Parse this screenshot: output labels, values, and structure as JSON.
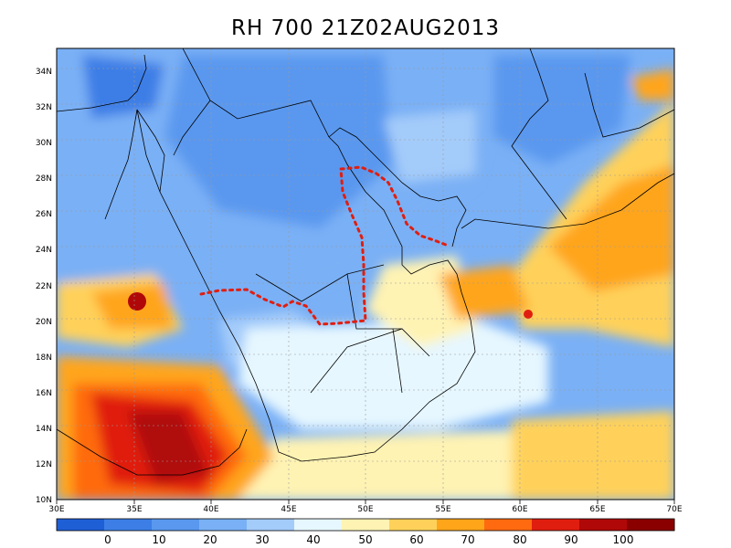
{
  "title": "RH 700 21Z02AUG2013",
  "lon_ticks": [
    "30E",
    "35E",
    "40E",
    "45E",
    "50E",
    "55E",
    "60E",
    "65E",
    "70E"
  ],
  "lat_ticks": [
    "10N",
    "12N",
    "14N",
    "16N",
    "18N",
    "20N",
    "22N",
    "24N",
    "26N",
    "28N",
    "30N",
    "32N",
    "34N"
  ],
  "colorbar": {
    "colors": [
      "#1f5fd6",
      "#3c7ee6",
      "#5a98ef",
      "#7ab0f5",
      "#a4ccfa",
      "#e6f7ff",
      "#fff3b3",
      "#ffd15a",
      "#ffa51a",
      "#ff6a10",
      "#e01e10",
      "#b00808",
      "#8a0000"
    ],
    "labels": [
      "0",
      "10",
      "20",
      "30",
      "40",
      "50",
      "60",
      "70",
      "80",
      "90",
      "100"
    ]
  },
  "marked_region": {
    "style": "red dotted outline"
  }
}
